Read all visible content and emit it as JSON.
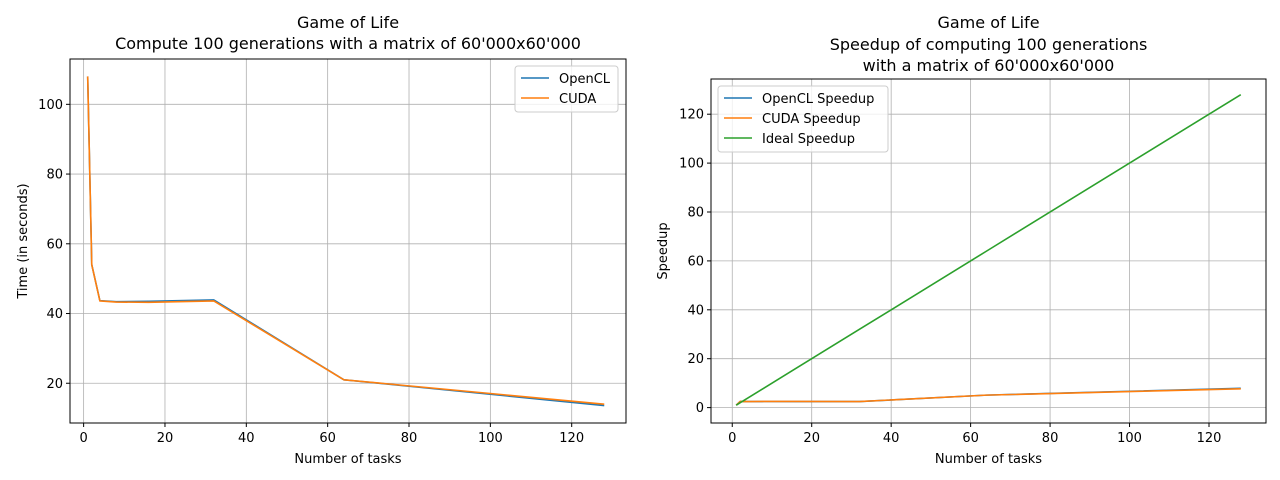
{
  "chart_data": [
    {
      "type": "line",
      "title": "Game of Life\nCompute 100 generations with a matrix of 60'000x60'000",
      "xlabel": "Number of tasks",
      "ylabel": "Time (in seconds)",
      "xlim": [
        -3.35,
        133.35
      ],
      "ylim": [
        8.6,
        113.0
      ],
      "xticks": [
        0,
        20,
        40,
        60,
        80,
        100,
        120
      ],
      "yticks": [
        20,
        40,
        60,
        80,
        100
      ],
      "grid": true,
      "legend_position": "top-right",
      "x": [
        1,
        2,
        4,
        8,
        16,
        32,
        64,
        128
      ],
      "series": [
        {
          "name": "OpenCL",
          "color": "#1f77b4",
          "values": [
            108.0,
            54.0,
            43.7,
            43.4,
            43.5,
            43.9,
            21.0,
            13.6
          ]
        },
        {
          "name": "CUDA",
          "color": "#ff7f0e",
          "values": [
            108.0,
            54.0,
            43.6,
            43.3,
            43.2,
            43.6,
            21.0,
            14.0
          ]
        }
      ]
    },
    {
      "type": "line",
      "title": "Game of Life\nSpeedup of computing 100 generations\nwith a matrix of 60'000x60'000",
      "xlabel": "Number of tasks",
      "ylabel": "Speedup",
      "xlim": [
        -5.35,
        134.35
      ],
      "ylim": [
        -6.3,
        134.4
      ],
      "xticks": [
        0,
        20,
        40,
        60,
        80,
        100,
        120
      ],
      "yticks": [
        0,
        20,
        40,
        60,
        80,
        100,
        120
      ],
      "grid": true,
      "legend_position": "top-left",
      "x": [
        1,
        2,
        4,
        8,
        16,
        32,
        64,
        128
      ],
      "series": [
        {
          "name": "OpenCL Speedup",
          "color": "#1f77b4",
          "values": [
            1.0,
            2.5,
            2.47,
            2.49,
            2.48,
            2.46,
            5.1,
            7.9
          ]
        },
        {
          "name": "CUDA Speedup",
          "color": "#ff7f0e",
          "values": [
            1.0,
            2.5,
            2.48,
            2.5,
            2.5,
            2.48,
            5.1,
            7.7
          ]
        },
        {
          "name": "Ideal Speedup",
          "color": "#2ca02c",
          "values": [
            1,
            2,
            4,
            8,
            16,
            32,
            64,
            128
          ]
        }
      ]
    }
  ]
}
